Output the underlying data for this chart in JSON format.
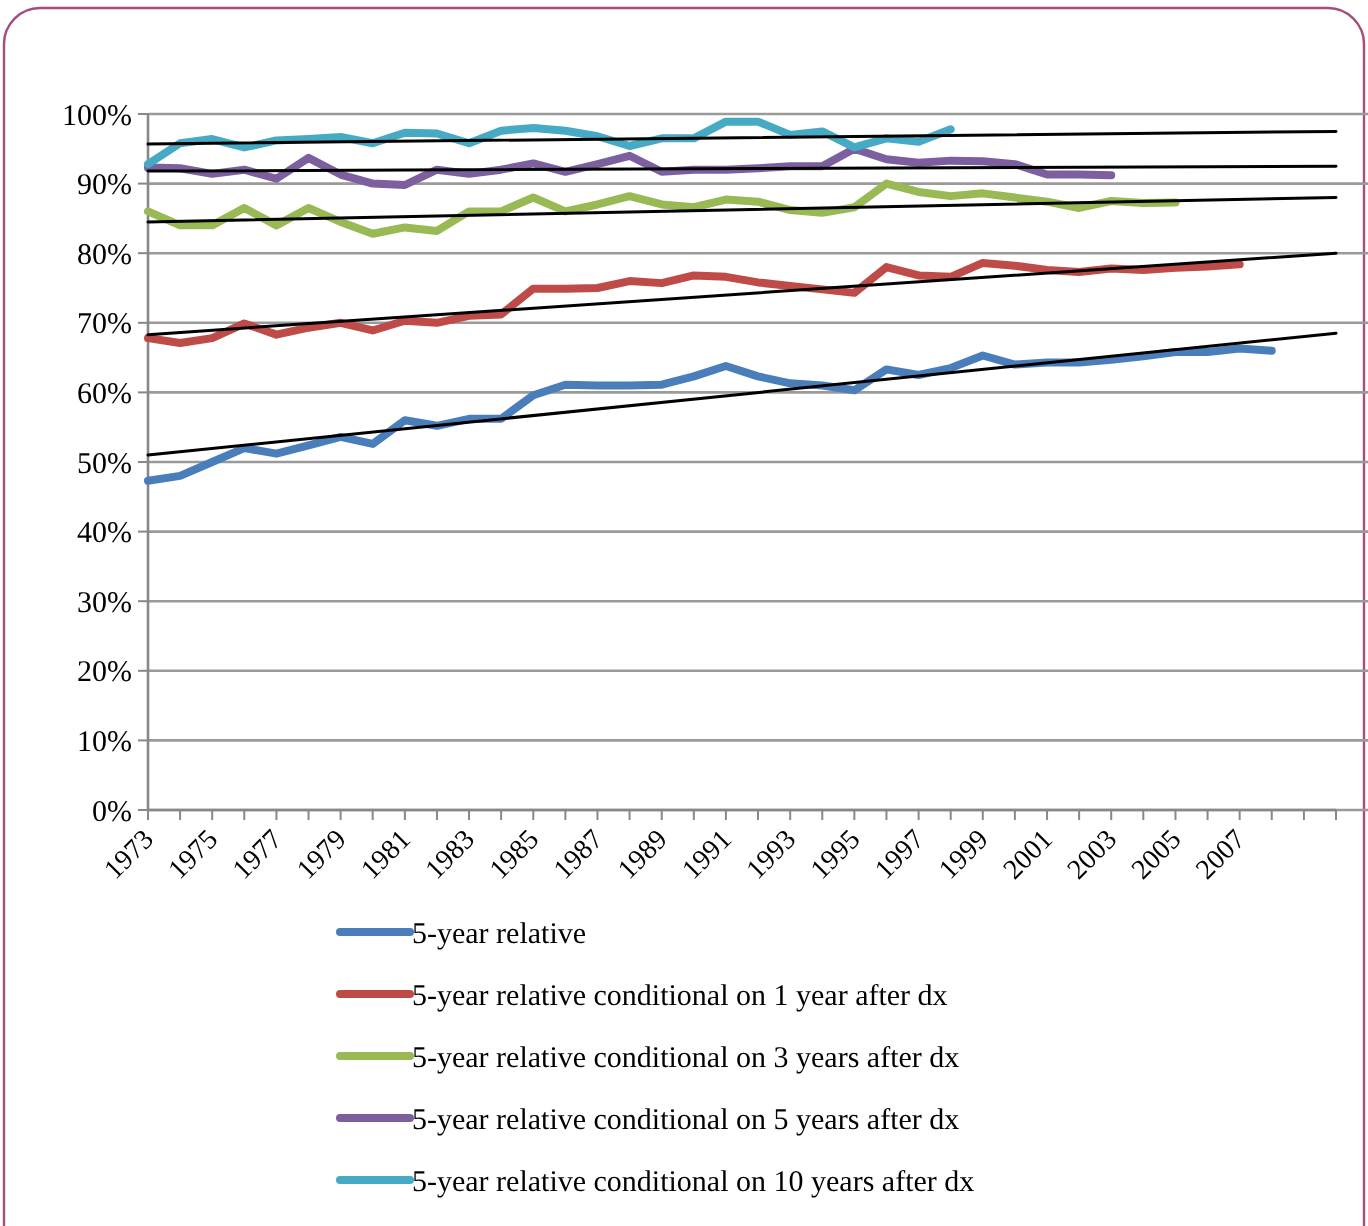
{
  "chart_data": {
    "type": "line",
    "x": [
      "1973",
      "1974",
      "1975",
      "1976",
      "1977",
      "1978",
      "1979",
      "1980",
      "1981",
      "1982",
      "1983",
      "1984",
      "1985",
      "1986",
      "1987",
      "1988",
      "1989",
      "1990",
      "1991",
      "1992",
      "1993",
      "1994",
      "1995",
      "1996",
      "1997",
      "1998",
      "1999",
      "2000",
      "2001",
      "2002",
      "2003",
      "2004",
      "2005",
      "2006",
      "2007",
      "2008"
    ],
    "xlim": [
      "1973",
      "2010"
    ],
    "xticks": [
      "1973",
      {
        "value": "1974",
        "label": null
      },
      "1975",
      {
        "value": "1976",
        "label": null
      },
      "1977",
      {
        "value": "1978",
        "label": null
      },
      "1979",
      {
        "value": "1980",
        "label": null
      },
      "1981",
      {
        "value": "1982",
        "label": null
      },
      "1983",
      {
        "value": "1984",
        "label": null
      },
      "1985",
      {
        "value": "1986",
        "label": null
      },
      "1987",
      {
        "value": "1988",
        "label": null
      },
      "1989",
      {
        "value": "1990",
        "label": null
      },
      "1991",
      {
        "value": "1992",
        "label": null
      },
      "1993",
      {
        "value": "1994",
        "label": null
      },
      "1995",
      {
        "value": "1996",
        "label": null
      },
      "1997",
      {
        "value": "1998",
        "label": null
      },
      "1999",
      {
        "value": "2000",
        "label": null
      },
      "2001",
      {
        "value": "2002",
        "label": null
      },
      "2003",
      {
        "value": "2004",
        "label": null
      },
      "2005",
      {
        "value": "2006",
        "label": null
      },
      "2007",
      {
        "value": "2008",
        "label": null
      },
      {
        "value": "2009",
        "label": null
      },
      {
        "value": "2010",
        "label": null
      }
    ],
    "ylim": [
      0,
      100
    ],
    "yticks": [
      {
        "value": 0,
        "label": "0%"
      },
      {
        "value": 10,
        "label": "10%"
      },
      {
        "value": 20,
        "label": "20%"
      },
      {
        "value": 30,
        "label": "30%"
      },
      {
        "value": 40,
        "label": "40%"
      },
      {
        "value": 50,
        "label": "50%"
      },
      {
        "value": 60,
        "label": "60%"
      },
      {
        "value": 70,
        "label": "70%"
      },
      {
        "value": 80,
        "label": "80%"
      },
      {
        "value": 90,
        "label": "90%"
      },
      {
        "value": 100,
        "label": "100%"
      }
    ],
    "grid": "y",
    "legend": "bottom",
    "marker": "none",
    "line_style": "solid",
    "series": [
      {
        "name": "5-year relative",
        "color": "#4a7ebb",
        "values": [
          47.3,
          48,
          50,
          52,
          51.2,
          52.4,
          53.6,
          52.6,
          56,
          55.2,
          56.2,
          56.2,
          59.6,
          61.1,
          61,
          61,
          61.1,
          62.3,
          63.8,
          62.3,
          61.3,
          61,
          60.3,
          63.3,
          62.5,
          63.5,
          65.3,
          64,
          64.3,
          64.3,
          64.7,
          65.2,
          65.8,
          65.8,
          66.3,
          66
        ]
      },
      {
        "name": "5-year relative conditional on 1 year after dx",
        "color": "#be4b48",
        "values": [
          67.8,
          67.1,
          67.8,
          69.9,
          68.3,
          69.3,
          70,
          68.9,
          70.3,
          70,
          71,
          71.2,
          74.9,
          74.9,
          75,
          76,
          75.7,
          76.8,
          76.6,
          75.8,
          75.3,
          74.8,
          74.3,
          78,
          76.8,
          76.6,
          78.6,
          78.2,
          77.6,
          77.3,
          77.8,
          77.6,
          77.9,
          78.1,
          78.4,
          null
        ]
      },
      {
        "name": "5-year relative conditional on 3 years after dx",
        "color": "#98b954",
        "values": [
          86,
          84,
          84,
          86.5,
          84,
          86.5,
          84.5,
          82.8,
          83.7,
          83.2,
          86,
          86,
          88,
          86,
          87,
          88.2,
          87,
          86.6,
          87.7,
          87.4,
          86.2,
          85.8,
          86.6,
          90,
          88.8,
          88.2,
          88.6,
          88,
          87.4,
          86.5,
          87.5,
          87.2,
          87.3,
          null,
          null,
          null
        ]
      },
      {
        "name": "5-year relative conditional on 5 years after dx",
        "color": "#7d5fa0",
        "values": [
          92.3,
          92.2,
          91.4,
          92,
          90.7,
          93.7,
          91.3,
          90,
          89.8,
          92,
          91.4,
          92,
          92.9,
          91.7,
          92.8,
          94,
          91.7,
          92,
          92,
          92.2,
          92.5,
          92.5,
          95,
          93.5,
          93,
          93.3,
          93.2,
          92.8,
          91.3,
          91.3,
          91.2,
          null,
          null,
          null,
          null,
          null
        ]
      },
      {
        "name": "5-year relative conditional on 10 years after dx",
        "color": "#46aac5",
        "values": [
          92.8,
          95.8,
          96.4,
          95.2,
          96.2,
          96.4,
          96.7,
          95.8,
          97.3,
          97.2,
          95.8,
          97.6,
          98,
          97.6,
          96.8,
          95.4,
          96.5,
          96.5,
          98.9,
          98.9,
          97,
          97.5,
          95.2,
          96.5,
          96,
          97.8,
          null,
          null,
          null,
          null,
          null,
          null,
          null,
          null,
          null,
          null
        ]
      },
      {
        "color": "#000000",
        "x": [
          "1973",
          "2010"
        ],
        "values": [
          51,
          68.5
        ]
      },
      {
        "color": "#000000",
        "x": [
          "1973",
          "2010"
        ],
        "values": [
          68.3,
          80
        ]
      },
      {
        "color": "#000000",
        "x": [
          "1973",
          "2010"
        ],
        "values": [
          84.5,
          88
        ]
      },
      {
        "color": "#000000",
        "x": [
          "1973",
          "2010"
        ],
        "values": [
          91.8,
          92.5
        ]
      },
      {
        "color": "#000000",
        "x": [
          "1973",
          "2010"
        ],
        "values": [
          95.7,
          97.5
        ]
      }
    ]
  }
}
